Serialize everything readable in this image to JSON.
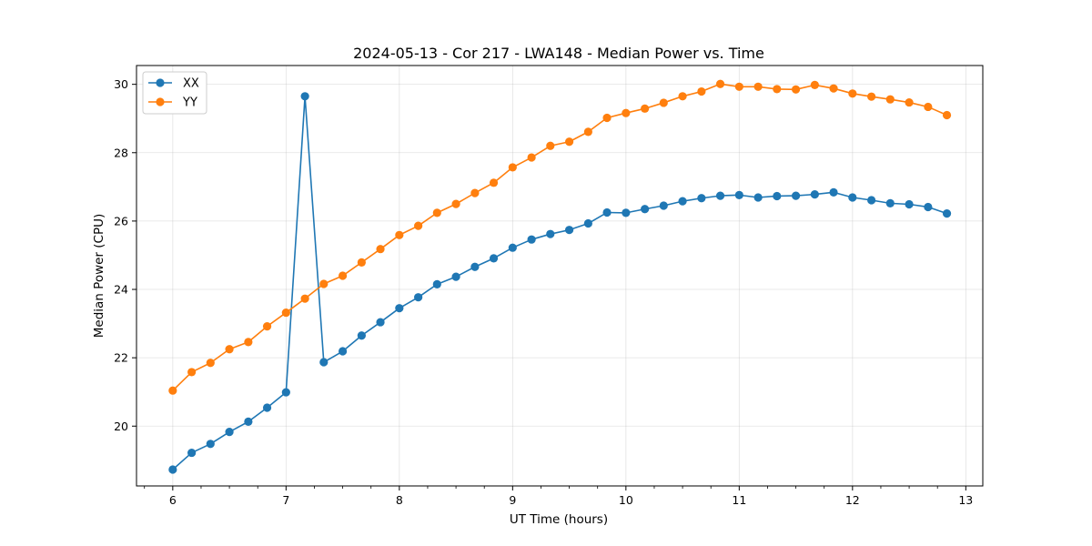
{
  "chart_data": {
    "type": "line",
    "title": "2024-05-13 - Cor 217 - LWA148 - Median Power vs. Time",
    "xlabel": "UT Time (hours)",
    "ylabel": "Median Power (CPU)",
    "xlim": [
      5.68,
      13.15
    ],
    "ylim": [
      18.25,
      30.55
    ],
    "xticks": [
      6,
      7,
      8,
      9,
      10,
      11,
      12,
      13
    ],
    "yticks": [
      20,
      22,
      24,
      26,
      28,
      30
    ],
    "grid": true,
    "legend_position": "top-left",
    "x": [
      6.0,
      6.167,
      6.333,
      6.5,
      6.667,
      6.833,
      7.0,
      7.167,
      7.333,
      7.5,
      7.667,
      7.833,
      8.0,
      8.167,
      8.333,
      8.5,
      8.667,
      8.833,
      9.0,
      9.167,
      9.333,
      9.5,
      9.667,
      9.833,
      10.0,
      10.167,
      10.333,
      10.5,
      10.667,
      10.833,
      11.0,
      11.167,
      11.333,
      11.5,
      11.667,
      11.833,
      12.0,
      12.167,
      12.333,
      12.5,
      12.667,
      12.833
    ],
    "series": [
      {
        "name": "XX",
        "color": "#1f77b4",
        "values": [
          18.73,
          19.22,
          19.48,
          19.83,
          20.13,
          20.54,
          20.99,
          29.65,
          21.87,
          22.19,
          22.65,
          23.04,
          23.45,
          23.77,
          24.15,
          24.37,
          24.66,
          24.91,
          25.22,
          25.46,
          25.62,
          25.74,
          25.93,
          26.25,
          26.24,
          26.35,
          26.45,
          26.58,
          26.67,
          26.74,
          26.76,
          26.69,
          26.73,
          26.74,
          26.78,
          26.84,
          26.69,
          26.61,
          26.52,
          26.49,
          26.41,
          26.22
        ]
      },
      {
        "name": "YY",
        "color": "#ff7f0e",
        "values": [
          21.04,
          21.58,
          21.85,
          22.25,
          22.46,
          22.92,
          23.32,
          23.73,
          24.16,
          24.4,
          24.79,
          25.18,
          25.59,
          25.86,
          26.24,
          26.5,
          26.82,
          27.12,
          27.57,
          27.86,
          28.2,
          28.32,
          28.61,
          29.02,
          29.16,
          29.29,
          29.46,
          29.65,
          29.79,
          30.01,
          29.93,
          29.93,
          29.86,
          29.85,
          29.98,
          29.88,
          29.73,
          29.64,
          29.56,
          29.47,
          29.34,
          29.1
        ]
      }
    ]
  }
}
